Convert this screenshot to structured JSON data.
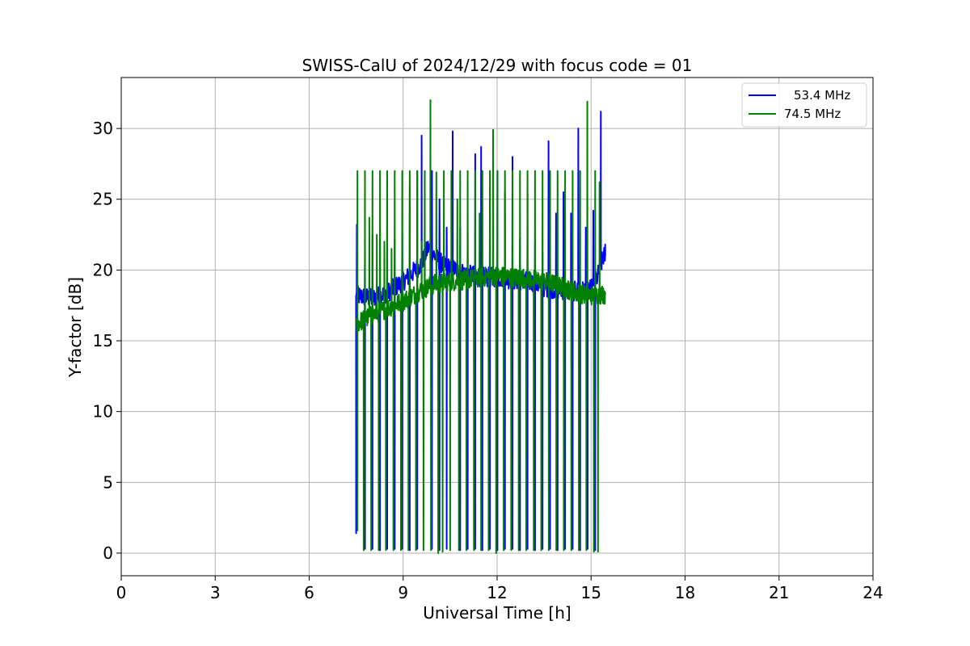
{
  "chart_data": {
    "type": "line",
    "title": "SWISS-CalU of 2024/12/29 with focus code = 01",
    "xlabel": "Universal Time [h]",
    "ylabel": "Y-factor [dB]",
    "xlim": [
      0,
      24
    ],
    "ylim": [
      -1.6,
      33.6
    ],
    "xticks": [
      "0",
      "3",
      "6",
      "9",
      "12",
      "15",
      "18",
      "21",
      "24"
    ],
    "yticks": [
      "0",
      "5",
      "10",
      "15",
      "20",
      "25",
      "30"
    ],
    "grid": true,
    "legend_position": "top-right",
    "series": [
      {
        "name": "53.4 MHz",
        "color": "#0000ff",
        "baseline": [
          [
            7.5,
            18.2
          ],
          [
            8.0,
            18.0
          ],
          [
            8.5,
            18.4
          ],
          [
            9.0,
            19.2
          ],
          [
            9.3,
            19.8
          ],
          [
            9.6,
            20.5
          ],
          [
            9.8,
            21.6
          ],
          [
            10.0,
            21.0
          ],
          [
            10.3,
            20.3
          ],
          [
            10.7,
            20.0
          ],
          [
            11.0,
            19.7
          ],
          [
            11.5,
            19.5
          ],
          [
            12.0,
            19.5
          ],
          [
            12.5,
            19.3
          ],
          [
            13.0,
            19.2
          ],
          [
            13.5,
            18.8
          ],
          [
            14.0,
            18.6
          ],
          [
            14.5,
            18.5
          ],
          [
            15.0,
            18.6
          ],
          [
            15.2,
            19.5
          ],
          [
            15.4,
            21.0
          ]
        ],
        "peaks": [
          [
            7.52,
            23.2
          ],
          [
            7.78,
            21.0
          ],
          [
            8.02,
            22.5
          ],
          [
            8.26,
            22.8
          ],
          [
            8.49,
            26.7
          ],
          [
            8.73,
            22.2
          ],
          [
            8.97,
            22.4
          ],
          [
            9.21,
            25.9
          ],
          [
            9.45,
            27.0
          ],
          [
            9.59,
            29.5
          ],
          [
            9.92,
            27.0
          ],
          [
            10.16,
            25.0
          ],
          [
            10.39,
            23.0
          ],
          [
            10.58,
            29.8
          ],
          [
            10.82,
            23.0
          ],
          [
            11.06,
            22.7
          ],
          [
            11.3,
            28.2
          ],
          [
            11.49,
            28.7
          ],
          [
            11.77,
            25.8
          ],
          [
            12.01,
            27.0
          ],
          [
            12.25,
            25.5
          ],
          [
            12.49,
            28.0
          ],
          [
            12.73,
            22.3
          ],
          [
            12.97,
            25.4
          ],
          [
            13.21,
            22.0
          ],
          [
            13.45,
            21.3
          ],
          [
            13.64,
            29.1
          ],
          [
            13.88,
            24.0
          ],
          [
            14.12,
            25.5
          ],
          [
            14.36,
            24.0
          ],
          [
            14.59,
            30.0
          ],
          [
            14.83,
            23.0
          ],
          [
            15.07,
            24.2
          ],
          [
            15.31,
            31.2
          ]
        ],
        "dips": [
          [
            7.5,
            1.4
          ],
          [
            7.78,
            0.3
          ],
          [
            8.02,
            0.3
          ],
          [
            8.26,
            0.2
          ],
          [
            8.49,
            0.3
          ],
          [
            8.73,
            0.3
          ],
          [
            8.97,
            0.3
          ],
          [
            9.21,
            0.2
          ],
          [
            9.45,
            0.3
          ],
          [
            9.92,
            0.3
          ],
          [
            10.16,
            0.2
          ],
          [
            10.39,
            0.3
          ],
          [
            10.82,
            0.2
          ],
          [
            11.06,
            0.3
          ],
          [
            11.3,
            0.3
          ],
          [
            11.53,
            0.2
          ],
          [
            11.77,
            0.3
          ],
          [
            12.01,
            0.2
          ],
          [
            12.25,
            0.3
          ],
          [
            12.49,
            0.3
          ],
          [
            12.73,
            0.2
          ],
          [
            12.97,
            0.3
          ],
          [
            13.21,
            0.2
          ],
          [
            13.45,
            0.3
          ],
          [
            13.69,
            0.3
          ],
          [
            13.93,
            0.2
          ],
          [
            14.17,
            0.3
          ],
          [
            14.41,
            0.3
          ],
          [
            14.65,
            0.2
          ],
          [
            14.89,
            0.3
          ],
          [
            15.13,
            0.2
          ]
        ],
        "end": [
          15.45,
          21.8
        ]
      },
      {
        "name": "74.5 MHz",
        "color": "#008000",
        "baseline": [
          [
            7.5,
            16.2
          ],
          [
            8.0,
            16.8
          ],
          [
            8.5,
            17.3
          ],
          [
            9.0,
            17.8
          ],
          [
            9.3,
            18.2
          ],
          [
            9.6,
            18.6
          ],
          [
            10.0,
            19.0
          ],
          [
            10.5,
            19.2
          ],
          [
            11.0,
            19.3
          ],
          [
            11.5,
            19.5
          ],
          [
            12.0,
            19.6
          ],
          [
            12.5,
            19.5
          ],
          [
            13.0,
            19.4
          ],
          [
            13.5,
            19.2
          ],
          [
            14.0,
            18.9
          ],
          [
            14.5,
            18.4
          ],
          [
            15.0,
            18.2
          ],
          [
            15.4,
            18.3
          ]
        ],
        "peaks": [
          [
            7.54,
            27.0
          ],
          [
            7.78,
            27.0
          ],
          [
            7.92,
            23.7
          ],
          [
            8.02,
            27.0
          ],
          [
            8.16,
            22.5
          ],
          [
            8.26,
            27.0
          ],
          [
            8.4,
            22.0
          ],
          [
            8.49,
            27.0
          ],
          [
            8.63,
            21.5
          ],
          [
            8.73,
            27.0
          ],
          [
            8.97,
            27.0
          ],
          [
            9.21,
            27.0
          ],
          [
            9.45,
            27.0
          ],
          [
            9.59,
            22.0
          ],
          [
            9.69,
            27.0
          ],
          [
            9.87,
            32.0
          ],
          [
            10.06,
            26.9
          ],
          [
            10.3,
            27.0
          ],
          [
            10.54,
            27.0
          ],
          [
            10.73,
            25.0
          ],
          [
            10.82,
            27.0
          ],
          [
            11.06,
            27.0
          ],
          [
            11.3,
            27.0
          ],
          [
            11.44,
            24.0
          ],
          [
            11.53,
            27.0
          ],
          [
            11.77,
            27.0
          ],
          [
            11.87,
            29.9
          ],
          [
            12.01,
            27.0
          ],
          [
            12.25,
            27.0
          ],
          [
            12.49,
            27.0
          ],
          [
            12.73,
            27.0
          ],
          [
            12.97,
            27.0
          ],
          [
            13.21,
            27.0
          ],
          [
            13.45,
            27.0
          ],
          [
            13.69,
            27.0
          ],
          [
            13.93,
            27.0
          ],
          [
            14.17,
            27.0
          ],
          [
            14.41,
            27.0
          ],
          [
            14.65,
            27.0
          ],
          [
            14.88,
            31.9
          ],
          [
            15.13,
            27.0
          ],
          [
            15.27,
            26.2
          ]
        ],
        "dips": [
          [
            7.54,
            1.6
          ],
          [
            7.74,
            0.2
          ],
          [
            7.98,
            0.2
          ],
          [
            8.22,
            0.2
          ],
          [
            8.45,
            0.2
          ],
          [
            8.69,
            0.2
          ],
          [
            8.93,
            0.2
          ],
          [
            9.17,
            0.2
          ],
          [
            9.41,
            0.2
          ],
          [
            9.65,
            0.2
          ],
          [
            9.89,
            0.2
          ],
          [
            10.12,
            0.0
          ],
          [
            10.26,
            0.1
          ],
          [
            10.5,
            0.2
          ],
          [
            10.78,
            0.2
          ],
          [
            11.02,
            0.2
          ],
          [
            11.26,
            0.2
          ],
          [
            11.49,
            0.2
          ],
          [
            11.73,
            0.2
          ],
          [
            11.97,
            0.0
          ],
          [
            12.21,
            0.2
          ],
          [
            12.45,
            0.2
          ],
          [
            12.69,
            0.2
          ],
          [
            12.93,
            0.2
          ],
          [
            13.17,
            0.2
          ],
          [
            13.41,
            0.2
          ],
          [
            13.65,
            0.2
          ],
          [
            13.89,
            0.2
          ],
          [
            14.13,
            0.2
          ],
          [
            14.37,
            0.2
          ],
          [
            14.61,
            0.2
          ],
          [
            14.85,
            0.2
          ],
          [
            15.09,
            0.1
          ],
          [
            15.22,
            0.1
          ]
        ],
        "end": [
          15.45,
          18.4
        ]
      }
    ]
  }
}
